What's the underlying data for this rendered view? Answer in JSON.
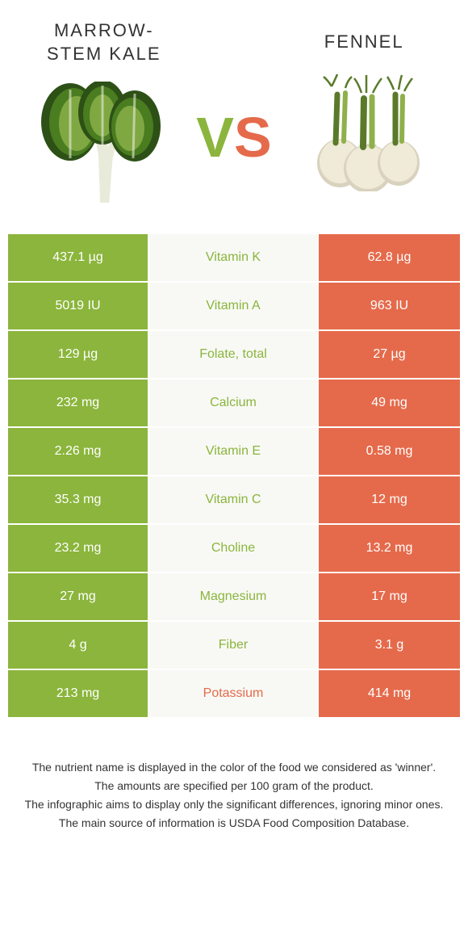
{
  "colors": {
    "green": "#8bb53c",
    "orange": "#e56a4b",
    "mid_bg": "#f8f9f5",
    "kale_dark": "#2d5016",
    "kale_mid": "#4a7c20",
    "kale_light": "#7fa843",
    "kale_stem": "#e8ebd9",
    "fennel_bulb": "#f0ead8",
    "fennel_bulb_shadow": "#d8d2be",
    "fennel_stalk": "#8fb04a",
    "fennel_stalk_dark": "#5a7a2a"
  },
  "left": {
    "title": "Marrow-\nstem Kale"
  },
  "right": {
    "title": "Fennel"
  },
  "vs": {
    "v": "V",
    "s": "S"
  },
  "rows": [
    {
      "nutrient": "Vitamin K",
      "left": "437.1 µg",
      "right": "62.8 µg",
      "winner": "left"
    },
    {
      "nutrient": "Vitamin A",
      "left": "5019 IU",
      "right": "963 IU",
      "winner": "left"
    },
    {
      "nutrient": "Folate, total",
      "left": "129 µg",
      "right": "27 µg",
      "winner": "left"
    },
    {
      "nutrient": "Calcium",
      "left": "232 mg",
      "right": "49 mg",
      "winner": "left"
    },
    {
      "nutrient": "Vitamin E",
      "left": "2.26 mg",
      "right": "0.58 mg",
      "winner": "left"
    },
    {
      "nutrient": "Vitamin C",
      "left": "35.3 mg",
      "right": "12 mg",
      "winner": "left"
    },
    {
      "nutrient": "Choline",
      "left": "23.2 mg",
      "right": "13.2 mg",
      "winner": "left"
    },
    {
      "nutrient": "Magnesium",
      "left": "27 mg",
      "right": "17 mg",
      "winner": "left"
    },
    {
      "nutrient": "Fiber",
      "left": "4 g",
      "right": "3.1 g",
      "winner": "left"
    },
    {
      "nutrient": "Potassium",
      "left": "213 mg",
      "right": "414 mg",
      "winner": "right"
    }
  ],
  "footnotes": [
    "The nutrient name is displayed in the color of the food we considered as 'winner'.",
    "The amounts are specified per 100 gram of the product.",
    "The infographic aims to display only the significant differences, ignoring minor ones.",
    "The main source of information is USDA Food Composition Database."
  ]
}
